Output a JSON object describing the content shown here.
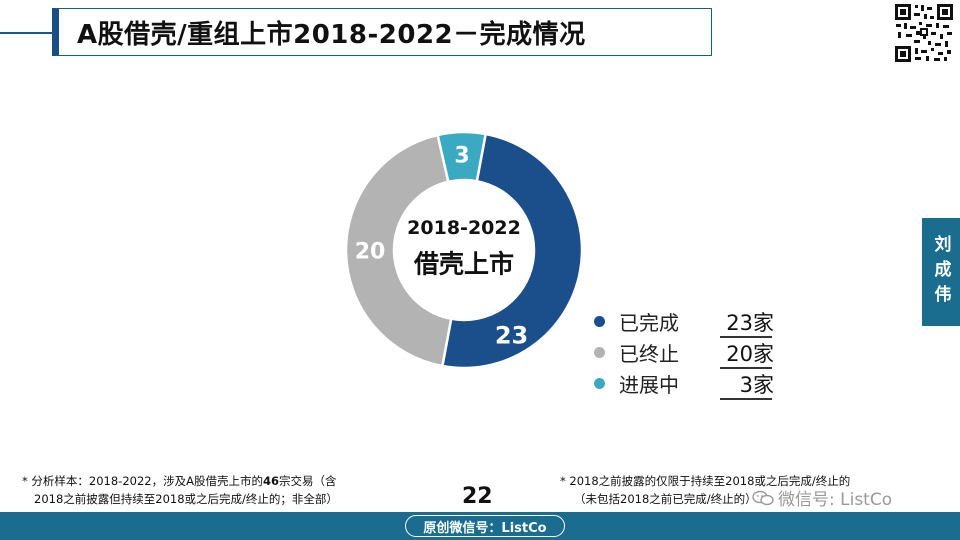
{
  "title": "A股借壳/重组上市2018-2022－完成情况",
  "side_tab": "刘成伟",
  "chart_data": {
    "type": "pie",
    "donut": true,
    "categories": [
      "已完成",
      "已终止",
      "进展中"
    ],
    "values": [
      23,
      20,
      3
    ],
    "colors": [
      "#1b4f8c",
      "#b3b3b3",
      "#3ba9c2"
    ],
    "data_labels": [
      "23",
      "20",
      "3"
    ],
    "center_label_line1": "2018-2022",
    "center_label_line2": "借壳上市",
    "legend_position": "bottom-right"
  },
  "legend": [
    {
      "label": "已完成",
      "count": "23家",
      "color": "#1b4f8c"
    },
    {
      "label": "已终止",
      "count": "20家",
      "color": "#b3b3b3"
    },
    {
      "label": "进展中",
      "count": "3家",
      "color": "#3ba9c2"
    }
  ],
  "notes": {
    "left_line1_a": "* 分析样本：2018-2022，涉及A股借壳上市的",
    "left_line1_b": "46",
    "left_line1_c": "宗交易（含",
    "left_line2": "2018之前披露但持续至2018或之后完成/终止的；非全部）",
    "right_line1": "* 2018之前披露的仅限于持续至2018或之后完成/终止的",
    "right_line2": "（未包括2018之前已完成/终止的）"
  },
  "page_number": "22",
  "watermark": "微信号: ListCo",
  "footer_label": "原创微信号：ListCo",
  "colors": {
    "footer": "#1a6d8e",
    "title_border": "#1a5a8a"
  },
  "icons": {
    "qr": "qr-code-icon",
    "watermark": "wechat-icon"
  }
}
